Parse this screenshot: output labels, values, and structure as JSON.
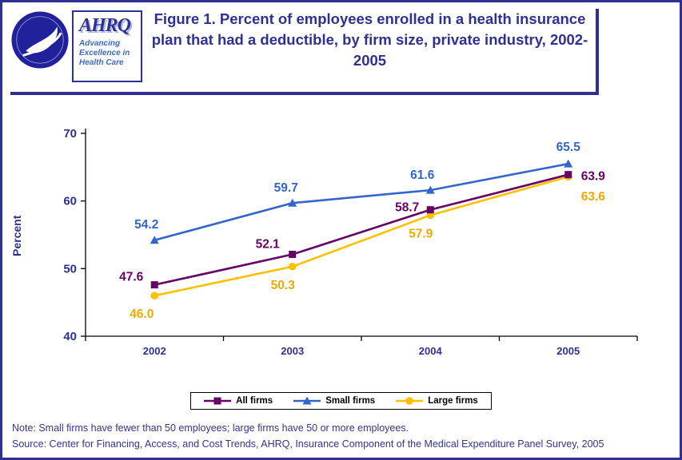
{
  "page": {
    "border_color": "#2E3192",
    "background": "#FFFFFF"
  },
  "header": {
    "title": "Figure 1. Percent of employees enrolled in a health insurance plan that had a deductible, by firm size, private industry, 2002-2005",
    "title_color": "#2E3192"
  },
  "logos": {
    "hhs_seal_icon": "hhs-eagle-seal",
    "ahrq_acronym": "AHRQ",
    "ahrq_tagline": "Advancing Excellence in Health Care"
  },
  "chart_data": {
    "type": "line",
    "title": "",
    "categories": [
      "2002",
      "2003",
      "2004",
      "2005"
    ],
    "series": [
      {
        "name": "All firms",
        "color": "#660066",
        "label_color": "#660066",
        "marker": "square",
        "values": [
          47.6,
          52.1,
          58.7,
          63.9
        ]
      },
      {
        "name": "Small firms",
        "color": "#3366CC",
        "label_color": "#3366CC",
        "marker": "triangle",
        "values": [
          54.2,
          59.7,
          61.6,
          65.5
        ]
      },
      {
        "name": "Large firms",
        "color": "#FFC000",
        "label_color": "#EFA900",
        "marker": "circle",
        "values": [
          46.0,
          50.3,
          57.9,
          63.6
        ]
      }
    ],
    "xlabel": "",
    "ylabel": "Percent",
    "ylim": [
      40,
      70
    ],
    "yticks": [
      40,
      50,
      60,
      70
    ],
    "grid": false,
    "legend_position": "bottom",
    "axis_color": "#000000",
    "tick_label_color": "#2E3192"
  },
  "footer": {
    "note": "Note: Small firms have fewer than 50 employees; large firms have 50 or more employees.",
    "source": "Source: Center for Financing, Access, and Cost Trends, AHRQ, Insurance Component of the Medical Expenditure Panel Survey, 2005",
    "text_color": "#333399"
  }
}
